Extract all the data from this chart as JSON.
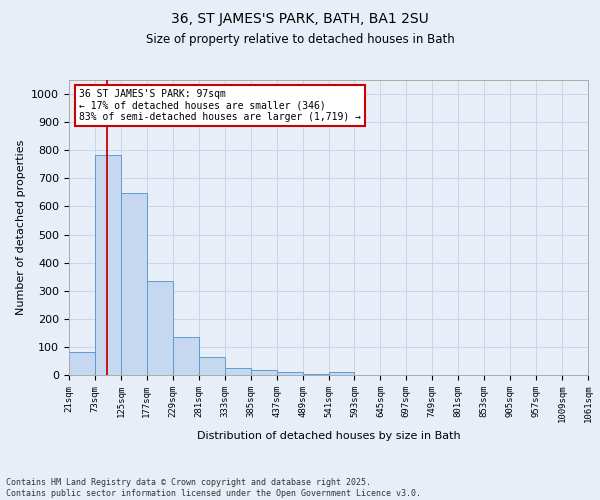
{
  "title1": "36, ST JAMES'S PARK, BATH, BA1 2SU",
  "title2": "Size of property relative to detached houses in Bath",
  "xlabel": "Distribution of detached houses by size in Bath",
  "ylabel": "Number of detached properties",
  "bin_labels": [
    "21sqm",
    "73sqm",
    "125sqm",
    "177sqm",
    "229sqm",
    "281sqm",
    "333sqm",
    "385sqm",
    "437sqm",
    "489sqm",
    "541sqm",
    "593sqm",
    "645sqm",
    "697sqm",
    "749sqm",
    "801sqm",
    "853sqm",
    "905sqm",
    "957sqm",
    "1009sqm",
    "1061sqm"
  ],
  "heights": [
    83,
    783,
    648,
    333,
    135,
    63,
    25,
    18,
    10,
    5,
    10,
    0,
    0,
    0,
    0,
    0,
    0,
    0,
    0,
    0
  ],
  "bar_color": "#c5d8ef",
  "bar_edge_color": "#5b9bd5",
  "grid_color": "#c8d4e8",
  "annotation_text": "36 ST JAMES'S PARK: 97sqm\n← 17% of detached houses are smaller (346)\n83% of semi-detached houses are larger (1,719) →",
  "annotation_box_color": "#ffffff",
  "annotation_box_edge_color": "#cc0000",
  "property_line_color": "#cc0000",
  "footer_text": "Contains HM Land Registry data © Crown copyright and database right 2025.\nContains public sector information licensed under the Open Government Licence v3.0.",
  "ylim": [
    0,
    1050
  ],
  "yticks": [
    0,
    100,
    200,
    300,
    400,
    500,
    600,
    700,
    800,
    900,
    1000
  ],
  "background_color": "#e8eef8"
}
